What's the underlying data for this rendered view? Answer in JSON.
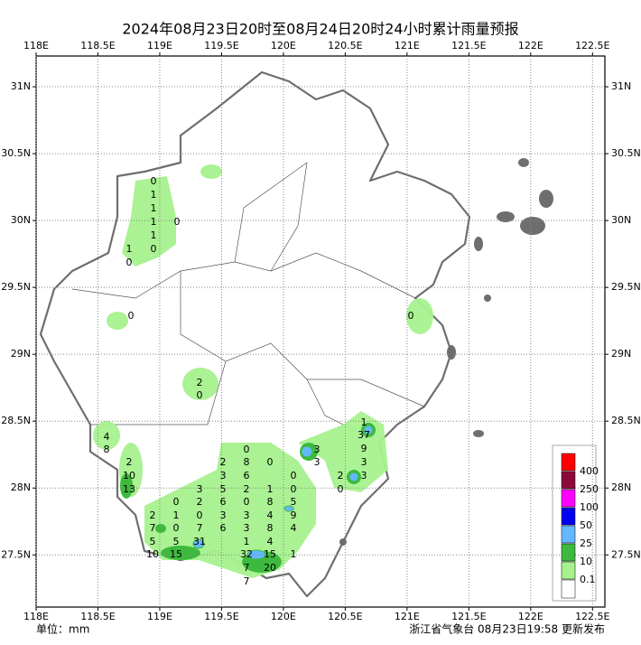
{
  "chart_data": {
    "type": "map",
    "title": "2024年08月23日20时至08月24日20时24小时累计雨量预报",
    "xlim": [
      118,
      122.6
    ],
    "ylim": [
      27.11,
      31.23
    ],
    "grid": true,
    "xticks": [
      {
        "value": 118,
        "label": "118E"
      },
      {
        "value": 118.5,
        "label": "118.5E"
      },
      {
        "value": 119,
        "label": "119E"
      },
      {
        "value": 119.5,
        "label": "119.5E"
      },
      {
        "value": 120,
        "label": "120E"
      },
      {
        "value": 120.5,
        "label": "120.5E"
      },
      {
        "value": 121,
        "label": "121E"
      },
      {
        "value": 121.5,
        "label": "121.5E"
      },
      {
        "value": 122,
        "label": "122E"
      },
      {
        "value": 122.5,
        "label": "122.5E"
      }
    ],
    "yticks": [
      {
        "value": 27.5,
        "label": "27.5N"
      },
      {
        "value": 28,
        "label": "28N"
      },
      {
        "value": 28.5,
        "label": "28.5N"
      },
      {
        "value": 29,
        "label": "29N"
      },
      {
        "value": 29.5,
        "label": "29.5N"
      },
      {
        "value": 30,
        "label": "30N"
      },
      {
        "value": 30.5,
        "label": "30.5N"
      },
      {
        "value": 31,
        "label": "31N"
      }
    ],
    "station_values": [
      0,
      1,
      1,
      1,
      0,
      1,
      1,
      0,
      0,
      0,
      2,
      0,
      4,
      8,
      2,
      10,
      13,
      0,
      2,
      8,
      0,
      3,
      6,
      0,
      3,
      5,
      2,
      1,
      0,
      0,
      2,
      6,
      0,
      8,
      5,
      2,
      1,
      0,
      3,
      3,
      4,
      9,
      7,
      0,
      7,
      6,
      3,
      8,
      4,
      5,
      5,
      31,
      1,
      4,
      10,
      15,
      32,
      15,
      1,
      7,
      20,
      7,
      3,
      3,
      1,
      37,
      9,
      3,
      2,
      3,
      0,
      0
    ],
    "legend": {
      "levels": [
        400,
        250,
        100,
        50,
        25,
        10,
        0.1
      ],
      "colors": [
        "#ff0000",
        "#8b0a3c",
        "#ff00ff",
        "#0000ee",
        "#63b8ff",
        "#3dba3d",
        "#a6f28e"
      ]
    },
    "unit": "单位：mm",
    "footer": "浙江省气象台 08月23日19:58 更新发布"
  }
}
